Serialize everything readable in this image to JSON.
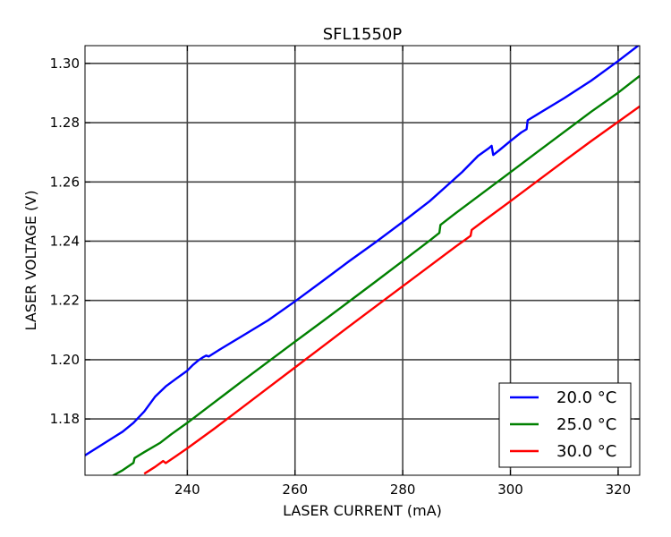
{
  "chart_data": {
    "type": "line",
    "title": "SFL1550P",
    "xlabel": "LASER CURRENT (mA)",
    "ylabel": "LASER VOLTAGE (V)",
    "xlim": [
      221,
      324
    ],
    "ylim": [
      1.161,
      1.306
    ],
    "xticks": [
      240,
      260,
      280,
      300,
      320
    ],
    "yticks": [
      1.18,
      1.2,
      1.22,
      1.24,
      1.26,
      1.28,
      1.3
    ],
    "x_tick_labels": [
      "240",
      "260",
      "280",
      "300",
      "320"
    ],
    "y_tick_labels": [
      "1.18",
      "1.20",
      "1.22",
      "1.24",
      "1.26",
      "1.28",
      "1.30"
    ],
    "grid": true,
    "legend_position": "bottom-right",
    "series": [
      {
        "name": "20.0 °C",
        "color": "#0000ff",
        "points": [
          [
            221,
            1.1677
          ],
          [
            225,
            1.1723
          ],
          [
            228,
            1.1757
          ],
          [
            230,
            1.1787
          ],
          [
            232,
            1.1825
          ],
          [
            234,
            1.1875
          ],
          [
            236,
            1.191
          ],
          [
            238,
            1.1937
          ],
          [
            240,
            1.1963
          ],
          [
            241,
            1.1982
          ],
          [
            242,
            1.1997
          ],
          [
            243,
            1.2009
          ],
          [
            243.5,
            1.2014
          ],
          [
            244,
            1.2011
          ],
          [
            246,
            1.2034
          ],
          [
            250,
            1.2078
          ],
          [
            255,
            1.2133
          ],
          [
            260,
            1.2197
          ],
          [
            265,
            1.2264
          ],
          [
            270,
            1.2332
          ],
          [
            275,
            1.2397
          ],
          [
            280,
            1.2465
          ],
          [
            285,
            1.2535
          ],
          [
            288,
            1.2584
          ],
          [
            291,
            1.2633
          ],
          [
            294,
            1.2688
          ],
          [
            296,
            1.2714
          ],
          [
            296.5,
            1.2722
          ],
          [
            296.8,
            1.2691
          ],
          [
            298,
            1.2708
          ],
          [
            300,
            1.2738
          ],
          [
            302,
            1.2767
          ],
          [
            303,
            1.2778
          ],
          [
            303.2,
            1.2808
          ],
          [
            305,
            1.2828
          ],
          [
            310,
            1.2883
          ],
          [
            315,
            1.2942
          ],
          [
            320,
            1.3008
          ],
          [
            324,
            1.3064
          ]
        ]
      },
      {
        "name": "25.0 °C",
        "color": "#008000",
        "points": [
          [
            226,
            1.1607
          ],
          [
            228,
            1.1627
          ],
          [
            230,
            1.1652
          ],
          [
            230.2,
            1.1668
          ],
          [
            232,
            1.1688
          ],
          [
            235,
            1.172
          ],
          [
            237,
            1.1748
          ],
          [
            240,
            1.1787
          ],
          [
            245,
            1.1856
          ],
          [
            250,
            1.1925
          ],
          [
            255,
            1.1993
          ],
          [
            260,
            1.2061
          ],
          [
            265,
            1.2128
          ],
          [
            270,
            1.2196
          ],
          [
            275,
            1.2264
          ],
          [
            280,
            1.2333
          ],
          [
            285,
            1.2402
          ],
          [
            286.8,
            1.2428
          ],
          [
            287,
            1.2455
          ],
          [
            290,
            1.2497
          ],
          [
            295,
            1.2565
          ],
          [
            300,
            1.2633
          ],
          [
            305,
            1.2701
          ],
          [
            310,
            1.2769
          ],
          [
            315,
            1.2837
          ],
          [
            320,
            1.2901
          ],
          [
            324,
            1.2958
          ]
        ]
      },
      {
        "name": "30.0 °C",
        "color": "#ff0000",
        "points": [
          [
            232,
            1.1615
          ],
          [
            234,
            1.1638
          ],
          [
            235.5,
            1.1658
          ],
          [
            236,
            1.1651
          ],
          [
            238,
            1.1676
          ],
          [
            240,
            1.1701
          ],
          [
            245,
            1.1767
          ],
          [
            250,
            1.1836
          ],
          [
            255,
            1.1905
          ],
          [
            260,
            1.1974
          ],
          [
            265,
            1.2043
          ],
          [
            270,
            1.2112
          ],
          [
            275,
            1.218
          ],
          [
            280,
            1.2248
          ],
          [
            285,
            1.2316
          ],
          [
            290,
            1.2384
          ],
          [
            292.6,
            1.2418
          ],
          [
            292.8,
            1.2438
          ],
          [
            295,
            1.2468
          ],
          [
            300,
            1.2535
          ],
          [
            305,
            1.2603
          ],
          [
            310,
            1.2671
          ],
          [
            315,
            1.2738
          ],
          [
            320,
            1.2803
          ],
          [
            324,
            1.2855
          ]
        ]
      }
    ]
  }
}
